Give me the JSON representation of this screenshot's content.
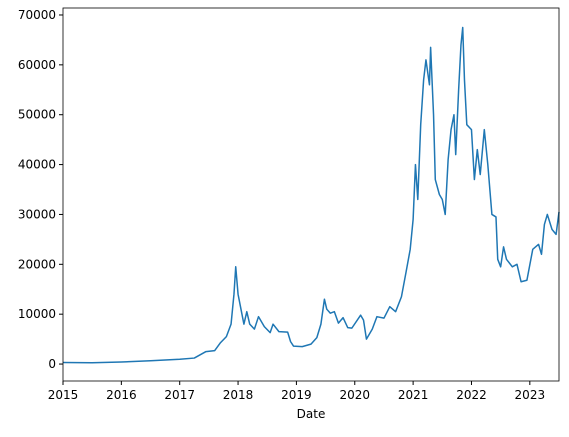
{
  "chart_data": {
    "type": "line",
    "x_label": "Date",
    "x": [
      2015.0,
      2015.5,
      2016.0,
      2016.5,
      2017.0,
      2017.25,
      2017.45,
      2017.6,
      2017.7,
      2017.8,
      2017.88,
      2017.93,
      2017.96,
      2018.0,
      2018.05,
      2018.1,
      2018.15,
      2018.2,
      2018.28,
      2018.35,
      2018.45,
      2018.55,
      2018.6,
      2018.7,
      2018.85,
      2018.9,
      2018.95,
      2019.1,
      2019.25,
      2019.35,
      2019.42,
      2019.48,
      2019.52,
      2019.58,
      2019.65,
      2019.72,
      2019.8,
      2019.88,
      2019.95,
      2020.1,
      2020.15,
      2020.2,
      2020.3,
      2020.38,
      2020.5,
      2020.6,
      2020.7,
      2020.8,
      2020.88,
      2020.95,
      2021.0,
      2021.04,
      2021.08,
      2021.13,
      2021.18,
      2021.22,
      2021.28,
      2021.3,
      2021.35,
      2021.38,
      2021.45,
      2021.5,
      2021.55,
      2021.6,
      2021.65,
      2021.7,
      2021.73,
      2021.78,
      2021.82,
      2021.85,
      2021.88,
      2021.92,
      2022.0,
      2022.05,
      2022.1,
      2022.15,
      2022.22,
      2022.28,
      2022.35,
      2022.42,
      2022.45,
      2022.5,
      2022.55,
      2022.6,
      2022.7,
      2022.78,
      2022.85,
      2022.95,
      2023.05,
      2023.15,
      2023.2,
      2023.25,
      2023.3,
      2023.38,
      2023.45,
      2023.5
    ],
    "series": [
      {
        "color": "#1f77b4",
        "values": [
          300,
          250,
          420,
          650,
          950,
          1200,
          2500,
          2700,
          4300,
          5500,
          8000,
          14000,
          19500,
          14000,
          11000,
          8000,
          10500,
          8000,
          7000,
          9500,
          7500,
          6300,
          8000,
          6500,
          6400,
          4500,
          3600,
          3500,
          4000,
          5300,
          8000,
          13000,
          11000,
          10200,
          10500,
          8200,
          9300,
          7300,
          7200,
          9800,
          8800,
          5000,
          7000,
          9500,
          9200,
          11500,
          10500,
          13500,
          18500,
          23000,
          29000,
          40000,
          33000,
          48000,
          57000,
          61000,
          56000,
          63500,
          50000,
          37000,
          34000,
          33000,
          30000,
          41000,
          47000,
          50000,
          42000,
          55000,
          64000,
          67500,
          57000,
          48000,
          47000,
          37000,
          43000,
          38000,
          47000,
          40000,
          30000,
          29500,
          21000,
          19500,
          23500,
          21000,
          19500,
          20000,
          16500,
          16800,
          23000,
          24000,
          22000,
          28000,
          30000,
          27000,
          26000,
          30500
        ]
      }
    ],
    "xlim": [
      2015,
      2023.5
    ],
    "xticks": [
      2015,
      2016,
      2017,
      2018,
      2019,
      2020,
      2021,
      2022,
      2023
    ],
    "ylim": [
      -3400,
      71400
    ],
    "yticks": [
      0,
      10000,
      20000,
      30000,
      40000,
      50000,
      60000,
      70000
    ]
  }
}
